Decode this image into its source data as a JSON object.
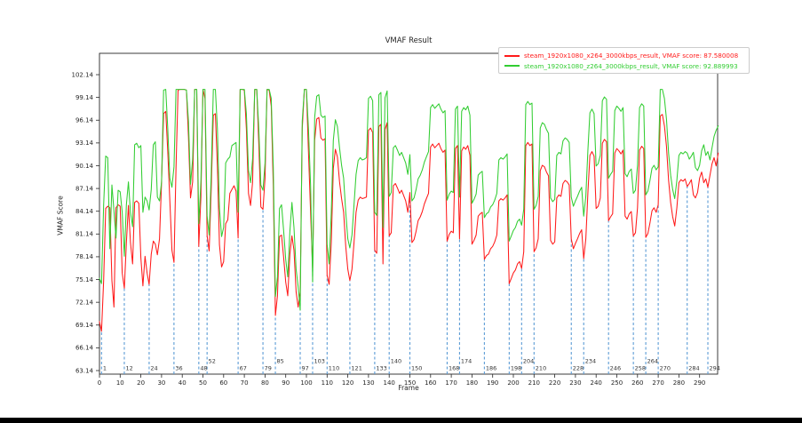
{
  "window": {
    "bottom_border_color": "#000000",
    "background": "#ffffff"
  },
  "chart_data": {
    "type": "line",
    "title": "VMAF Result",
    "xlabel": "Frame",
    "ylabel": "VMAF Score",
    "grid": false,
    "legend_position": "upper right",
    "xlim": [
      0,
      299
    ],
    "ylim": [
      62.7,
      105.0
    ],
    "x_ticks": [
      0,
      10,
      20,
      30,
      40,
      50,
      60,
      70,
      80,
      90,
      100,
      110,
      120,
      130,
      140,
      150,
      160,
      170,
      180,
      190,
      200,
      210,
      220,
      230,
      240,
      250,
      260,
      270,
      280,
      290
    ],
    "y_ticks": [
      63.14,
      66.14,
      69.14,
      72.14,
      75.14,
      78.14,
      81.14,
      84.14,
      87.14,
      90.14,
      93.14,
      96.14,
      99.14,
      102.14
    ],
    "axis_color": "#262626",
    "series": [
      {
        "name": "steam_1920x1080_x264_3000kbps_result, VMAF score: 87.580008",
        "color": "#ff1a1a",
        "values": [
          69.6,
          68.3,
          75.0,
          84.5,
          84.8,
          84.6,
          75.0,
          71.5,
          84.6,
          85.0,
          84.8,
          76.0,
          74.0,
          80.0,
          84.9,
          80.0,
          77.2,
          85.3,
          85.5,
          85.2,
          78.0,
          74.3,
          78.2,
          76.0,
          74.5,
          78.5,
          80.2,
          79.8,
          78.4,
          80.5,
          88.0,
          97.0,
          97.3,
          92.0,
          85.6,
          79.0,
          77.4,
          90.0,
          100.1,
          100.2,
          100.2,
          100.2,
          100.1,
          94.0,
          85.9,
          88.0,
          100.2,
          100.2,
          79.5,
          86.0,
          100.2,
          99.0,
          80.9,
          78.9,
          87.0,
          96.8,
          97.0,
          90.0,
          79.7,
          76.8,
          77.5,
          82.5,
          83.0,
          86.5,
          87.0,
          87.5,
          86.8,
          80.6,
          100.2,
          100.2,
          100.1,
          95.0,
          86.5,
          84.9,
          88.0,
          100.2,
          100.2,
          93.0,
          84.7,
          84.4,
          88.5,
          100.2,
          100.1,
          98.0,
          87.5,
          70.4,
          73.0,
          80.8,
          81.0,
          78.0,
          74.8,
          73.0,
          78.5,
          80.9,
          79.0,
          73.5,
          71.5,
          73.5,
          95.0,
          100.2,
          100.2,
          92.0,
          84.0,
          76.5,
          93.5,
          96.3,
          96.5,
          93.8,
          93.5,
          93.7,
          75.7,
          74.5,
          80.0,
          89.8,
          92.3,
          91.3,
          88.0,
          85.8,
          84.0,
          79.5,
          76.5,
          75.0,
          76.5,
          80.0,
          84.0,
          85.6,
          86.0,
          85.8,
          85.9,
          86.0,
          94.8,
          95.1,
          94.5,
          79.0,
          78.6,
          95.3,
          95.6,
          77.2,
          94.9,
          95.8,
          80.9,
          81.3,
          87.5,
          87.8,
          87.2,
          86.5,
          86.9,
          86.2,
          85.5,
          84.0,
          86.6,
          80.0,
          80.4,
          81.5,
          82.9,
          83.4,
          84.1,
          85.1,
          85.8,
          86.5,
          92.6,
          93.0,
          92.5,
          92.8,
          93.1,
          92.4,
          91.9,
          92.2,
          80.2,
          81.1,
          81.5,
          81.3,
          92.4,
          92.8,
          80.5,
          92.1,
          92.6,
          92.3,
          92.8,
          91.5,
          79.8,
          80.3,
          81.0,
          83.5,
          83.8,
          84.0,
          77.8,
          78.3,
          78.5,
          79.2,
          79.5,
          80.1,
          81.0,
          85.5,
          85.8,
          85.6,
          85.9,
          86.3,
          74.6,
          75.3,
          76.0,
          76.4,
          77.2,
          77.5,
          76.6,
          78.8,
          92.8,
          93.2,
          92.8,
          93.0,
          78.8,
          79.3,
          80.5,
          89.5,
          90.2,
          90.0,
          89.3,
          88.8,
          80.3,
          79.8,
          80.1,
          85.9,
          86.3,
          86.1,
          87.8,
          88.2,
          88.0,
          87.6,
          80.5,
          79.2,
          79.9,
          80.5,
          81.2,
          81.7,
          77.9,
          80.5,
          86.5,
          91.5,
          92.0,
          91.4,
          84.5,
          84.8,
          85.9,
          93.1,
          93.6,
          93.3,
          82.9,
          83.4,
          83.8,
          91.8,
          92.4,
          92.1,
          91.7,
          92.2,
          83.5,
          83.1,
          83.8,
          84.1,
          80.9,
          81.3,
          84.6,
          92.2,
          92.7,
          92.4,
          80.7,
          81.2,
          82.6,
          84.2,
          84.6,
          84.0,
          85.0,
          96.7,
          96.9,
          95.4,
          92.7,
          88.2,
          85.3,
          83.4,
          82.2,
          84.6,
          87.9,
          88.3,
          88.1,
          88.4,
          87.4,
          87.8,
          88.3,
          86.3,
          85.9,
          86.6,
          88.5,
          89.3,
          87.9,
          88.4,
          87.3,
          88.9,
          90.4,
          91.2,
          90.1,
          91.8
        ]
      },
      {
        "name": "steam_1920x1080_z264_3000kbps_result, VMAF score: 92.889993",
        "color": "#32cd32",
        "values": [
          75.3,
          74.6,
          85.0,
          91.4,
          91.2,
          79.2,
          87.6,
          84.2,
          80.6,
          86.9,
          86.7,
          84.0,
          78.2,
          85.0,
          88.0,
          84.0,
          82.1,
          92.9,
          93.1,
          92.5,
          92.8,
          84.0,
          86.0,
          85.5,
          84.3,
          87.0,
          92.9,
          93.3,
          86.0,
          85.5,
          88.0,
          100.1,
          100.2,
          95.0,
          88.5,
          87.3,
          90.0,
          100.2,
          100.2,
          100.2,
          100.2,
          100.2,
          100.1,
          96.0,
          87.7,
          91.0,
          100.2,
          100.2,
          82.5,
          88.0,
          100.2,
          100.2,
          83.5,
          81.0,
          89.0,
          100.2,
          100.2,
          95.0,
          84.5,
          80.8,
          82.0,
          90.5,
          91.0,
          91.3,
          92.8,
          93.0,
          93.2,
          84.0,
          100.2,
          100.2,
          100.2,
          97.0,
          89.5,
          87.9,
          91.0,
          100.2,
          100.2,
          95.0,
          87.6,
          86.9,
          90.5,
          100.2,
          100.2,
          99.0,
          90.0,
          72.9,
          75.5,
          84.5,
          85.0,
          81.5,
          77.8,
          75.5,
          81.5,
          85.3,
          82.0,
          76.5,
          74.2,
          71.1,
          96.0,
          100.2,
          100.2,
          95.0,
          87.5,
          74.8,
          96.5,
          99.3,
          99.5,
          96.8,
          96.5,
          96.7,
          79.8,
          77.2,
          84.0,
          93.5,
          96.2,
          95.3,
          92.5,
          90.2,
          88.5,
          84.0,
          80.5,
          79.3,
          81.0,
          85.0,
          89.0,
          90.8,
          91.2,
          90.9,
          91.0,
          91.2,
          99.0,
          99.3,
          98.7,
          84.0,
          83.6,
          99.5,
          99.8,
          82.0,
          99.1,
          100.0,
          86.1,
          86.6,
          92.5,
          92.8,
          92.2,
          91.5,
          91.9,
          91.2,
          90.5,
          89.0,
          91.6,
          85.5,
          85.9,
          87.0,
          88.4,
          88.9,
          89.6,
          90.6,
          91.3,
          92.0,
          97.8,
          98.2,
          97.7,
          98.0,
          98.3,
          97.6,
          97.1,
          97.4,
          85.6,
          86.4,
          86.8,
          86.6,
          97.6,
          98.0,
          86.0,
          97.3,
          97.8,
          97.5,
          98.0,
          96.8,
          85.2,
          85.7,
          86.4,
          88.9,
          89.2,
          89.4,
          83.3,
          83.8,
          84.0,
          84.7,
          85.0,
          85.6,
          86.5,
          90.9,
          91.2,
          91.0,
          91.3,
          91.7,
          80.2,
          80.9,
          81.6,
          82.0,
          82.8,
          83.1,
          82.3,
          84.4,
          98.2,
          98.6,
          98.2,
          98.4,
          84.4,
          84.9,
          86.1,
          95.1,
          95.8,
          95.6,
          94.9,
          94.4,
          85.9,
          85.4,
          85.7,
          91.5,
          91.9,
          91.7,
          93.4,
          93.8,
          93.6,
          93.2,
          86.0,
          84.8,
          85.5,
          86.1,
          86.8,
          87.3,
          83.5,
          86.1,
          92.1,
          97.1,
          97.6,
          97.0,
          90.1,
          90.4,
          91.5,
          98.7,
          99.2,
          98.9,
          88.5,
          89.0,
          89.4,
          97.4,
          98.0,
          97.7,
          97.3,
          97.8,
          89.1,
          88.7,
          89.4,
          89.7,
          86.5,
          86.9,
          90.2,
          97.8,
          98.3,
          98.0,
          86.3,
          86.8,
          88.2,
          89.8,
          90.2,
          89.6,
          90.0,
          100.2,
          100.2,
          99.0,
          96.3,
          91.8,
          88.9,
          87.0,
          85.8,
          88.2,
          91.5,
          91.9,
          91.7,
          92.0,
          91.8,
          91.0,
          91.4,
          91.9,
          89.9,
          89.5,
          90.2,
          92.1,
          92.9,
          91.5,
          92.0,
          90.9,
          92.5,
          94.0,
          94.8,
          95.4
        ]
      }
    ],
    "scene_changes": {
      "color": "#5b9bd5",
      "line_style": "dashed",
      "frames": [
        1,
        12,
        24,
        36,
        48,
        52,
        67,
        79,
        85,
        97,
        103,
        110,
        121,
        133,
        140,
        150,
        168,
        174,
        186,
        198,
        204,
        210,
        228,
        234,
        246,
        258,
        264,
        270,
        284,
        294
      ],
      "raised_label_frames": [
        52,
        85,
        103,
        140,
        174,
        204,
        234,
        264
      ]
    }
  }
}
